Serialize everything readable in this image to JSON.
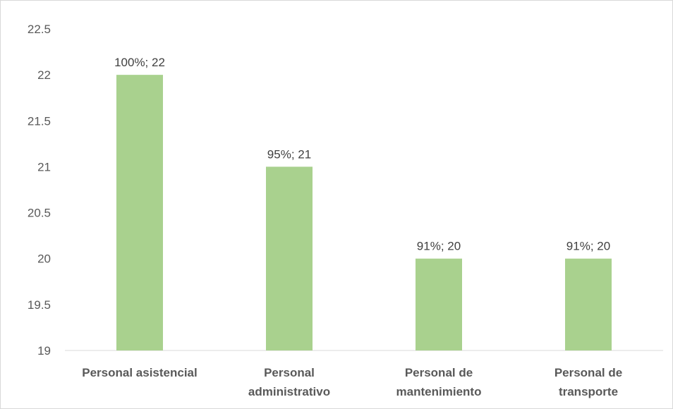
{
  "chart_data": {
    "type": "bar",
    "title": "",
    "xlabel": "",
    "ylabel": "",
    "categories": [
      [
        "Personal asistencial"
      ],
      [
        "Personal",
        "administrativo"
      ],
      [
        "Personal de",
        "mantenimiento"
      ],
      [
        "Personal de",
        "transporte"
      ]
    ],
    "values": [
      22,
      21,
      20,
      20
    ],
    "data_labels": [
      "100%; 22",
      "95%; 21",
      "91%; 20",
      "91%; 20"
    ],
    "ylim": [
      19,
      22.5
    ],
    "yticks": [
      19,
      19.5,
      20,
      20.5,
      21,
      21.5,
      22,
      22.5
    ],
    "ytick_labels": [
      "19",
      "19.5",
      "20",
      "20.5",
      "21",
      "21.5",
      "22",
      "22.5"
    ],
    "grid": false,
    "legend": "none",
    "colors": {
      "bar": "#a9d18e",
      "axis": "#d9d9d9"
    }
  }
}
